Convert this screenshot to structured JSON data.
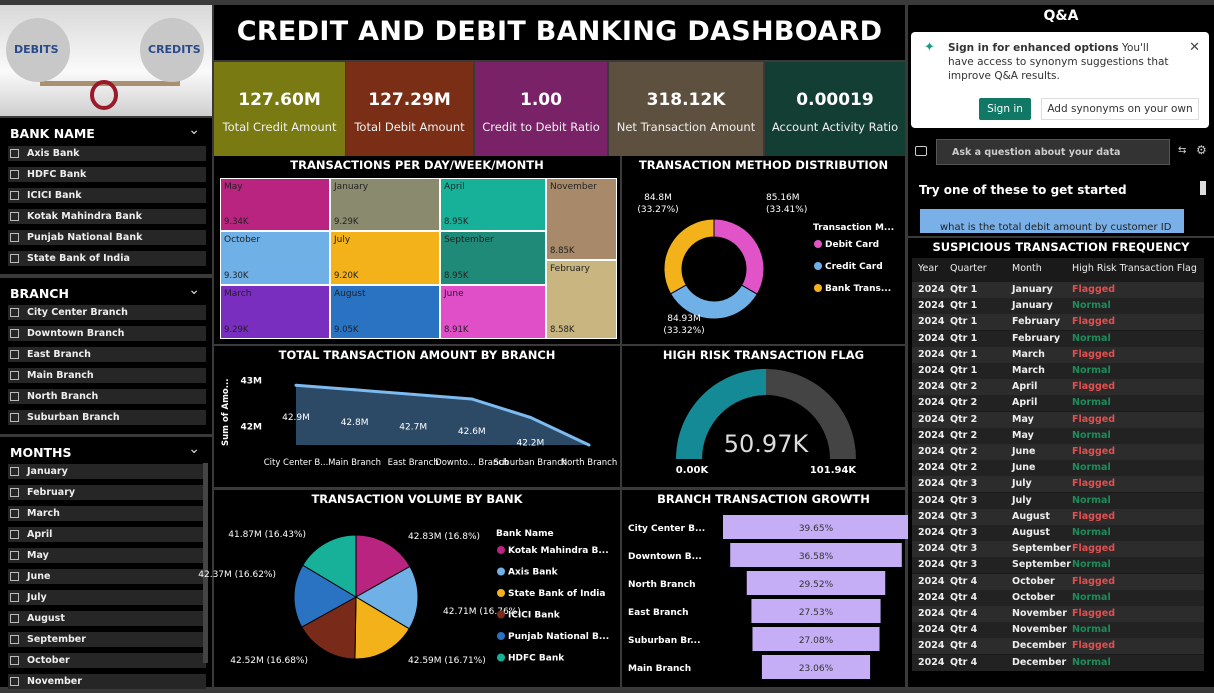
{
  "title": "CREDIT AND DEBIT BANKING DASHBOARD",
  "logo": {
    "left": "DEBITS",
    "right": "CREDITS"
  },
  "kpis": [
    {
      "value": "127.60M",
      "label": "Total Credit Amount",
      "color": "#7a7a12"
    },
    {
      "value": "127.29M",
      "label": "Total Debit Amount",
      "color": "#7a2e16"
    },
    {
      "value": "1.00",
      "label": "Credit to Debit Ratio",
      "color": "#7a2268"
    },
    {
      "value": "318.12K",
      "label": "Net Transaction Amount",
      "color": "#5e503e"
    },
    {
      "value": "0.00019",
      "label": "Account Activity Ratio",
      "color": "#123e34"
    }
  ],
  "slicers": {
    "bank": {
      "title": "BANK NAME",
      "items": [
        "Axis Bank",
        "HDFC Bank",
        "ICICI Bank",
        "Kotak Mahindra Bank",
        "Punjab National Bank",
        "State Bank of India"
      ]
    },
    "branch": {
      "title": "BRANCH",
      "items": [
        "City Center Branch",
        "Downtown Branch",
        "East Branch",
        "Main Branch",
        "North Branch",
        "Suburban Branch"
      ]
    },
    "months": {
      "title": "MONTHS",
      "items": [
        "January",
        "February",
        "March",
        "April",
        "May",
        "June",
        "July",
        "August",
        "September",
        "October",
        "November"
      ]
    }
  },
  "treemap": {
    "title": "TRANSACTIONS PER DAY/WEEK/MONTH",
    "cells": [
      {
        "name": "May",
        "value": "9.34K",
        "color": "#b8247f"
      },
      {
        "name": "January",
        "value": "9.29K",
        "color": "#8a8a6e"
      },
      {
        "name": "April",
        "value": "8.95K",
        "color": "#17b19a"
      },
      {
        "name": "November",
        "value": "8.85K",
        "color": "#a88a6a"
      },
      {
        "name": "October",
        "value": "9.30K",
        "color": "#6fb0e6"
      },
      {
        "name": "July",
        "value": "9.20K",
        "color": "#f4b21a"
      },
      {
        "name": "September",
        "value": "8.95K",
        "color": "#1f8a78"
      },
      {
        "name": "February",
        "value": "8.58K",
        "color": "#c8b580"
      },
      {
        "name": "March",
        "value": "9.29K",
        "color": "#7a2ec0"
      },
      {
        "name": "August",
        "value": "9.05K",
        "color": "#2a72c2"
      },
      {
        "name": "June",
        "value": "8.91K",
        "color": "#e04fc8"
      }
    ]
  },
  "donut": {
    "title": "TRANSACTION METHOD DISTRIBUTION",
    "legend_title": "Transaction M...",
    "slices": [
      {
        "name": "Debit Card",
        "value": 85.16,
        "label": "85.16M",
        "pct": "(33.41%)",
        "color": "#e054c8"
      },
      {
        "name": "Credit Card",
        "value": 84.93,
        "label": "84.93M",
        "pct": "(33.32%)",
        "color": "#6fb0e6"
      },
      {
        "name": "Bank Trans...",
        "value": 84.8,
        "label": "84.8M",
        "pct": "(33.27%)",
        "color": "#f4b21a"
      }
    ]
  },
  "chart_data": [
    {
      "type": "area",
      "title": "TOTAL TRANSACTION AMOUNT BY BRANCH",
      "ylabel": "Sum of Amo...",
      "categories": [
        "City Center B...",
        "Main Branch",
        "East Branch",
        "Downto... Branch",
        "Suburban Branch",
        "North Branch"
      ],
      "values": [
        42.9,
        42.8,
        42.7,
        42.6,
        42.2,
        41.6
      ],
      "data_labels": [
        "42.9M",
        "42.8M",
        "42.7M",
        "42.6M",
        "42.2M",
        ""
      ],
      "y_ticks": [
        "43M",
        "42M"
      ],
      "ylim": [
        41.6,
        43.1
      ]
    },
    {
      "type": "pie",
      "title": "TRANSACTION VOLUME BY BANK",
      "legend_title": "Bank Name",
      "slices": [
        {
          "name": "Kotak Mahindra B...",
          "value": 42.83,
          "label": "42.83M (16.8%)",
          "color": "#b8247f"
        },
        {
          "name": "Axis Bank",
          "value": 42.71,
          "label": "42.71M (16.76%)",
          "color": "#6fb0e6"
        },
        {
          "name": "State Bank of India",
          "value": 42.59,
          "label": "42.59M (16.71%)",
          "color": "#f4b21a"
        },
        {
          "name": "ICICI Bank",
          "value": 42.52,
          "label": "42.52M (16.68%)",
          "color": "#7a2a18"
        },
        {
          "name": "Punjab National B...",
          "value": 42.37,
          "label": "42.37M (16.62%)",
          "color": "#2a72c2"
        },
        {
          "name": "HDFC Bank",
          "value": 41.87,
          "label": "41.87M (16.43%)",
          "color": "#17b19a"
        }
      ]
    },
    {
      "type": "bar",
      "title": "BRANCH TRANSACTION GROWTH",
      "categories": [
        "City Center B...",
        "Downtown B...",
        "North Branch",
        "East Branch",
        "Suburban Br...",
        "Main Branch"
      ],
      "values": [
        39.65,
        36.58,
        29.52,
        27.53,
        27.08,
        23.06
      ],
      "labels": [
        "39.65%",
        "36.58%",
        "29.52%",
        "27.53%",
        "27.08%",
        "23.06%"
      ]
    }
  ],
  "gauge": {
    "title": "HIGH RISK TRANSACTION FLAG",
    "value": 50.97,
    "value_label": "50.97K",
    "min": "0.00K",
    "max": "101.94K",
    "max_value": 101.94
  },
  "qa": {
    "title": "Q&A",
    "sign_in_bold": "Sign in for enhanced options",
    "sign_in_text": "You'll have access to synonym suggestions that improve Q&A results.",
    "sign_in_btn": "Sign in",
    "synonyms_btn": "Add synonyms on your own",
    "placeholder": "Ask a question about your data",
    "try_text": "Try one of these to get started",
    "suggestion": "what is the total debit amount by customer ID"
  },
  "table": {
    "title": "SUSPICIOUS TRANSACTION FREQUENCY",
    "headers": [
      "Year",
      "Quarter",
      "Month",
      "High Risk Transaction Flag"
    ],
    "rows": [
      [
        "2024",
        "Qtr 1",
        "January",
        "Flagged"
      ],
      [
        "2024",
        "Qtr 1",
        "January",
        "Normal"
      ],
      [
        "2024",
        "Qtr 1",
        "February",
        "Flagged"
      ],
      [
        "2024",
        "Qtr 1",
        "February",
        "Normal"
      ],
      [
        "2024",
        "Qtr 1",
        "March",
        "Flagged"
      ],
      [
        "2024",
        "Qtr 1",
        "March",
        "Normal"
      ],
      [
        "2024",
        "Qtr 2",
        "April",
        "Flagged"
      ],
      [
        "2024",
        "Qtr 2",
        "April",
        "Normal"
      ],
      [
        "2024",
        "Qtr 2",
        "May",
        "Flagged"
      ],
      [
        "2024",
        "Qtr 2",
        "May",
        "Normal"
      ],
      [
        "2024",
        "Qtr 2",
        "June",
        "Flagged"
      ],
      [
        "2024",
        "Qtr 2",
        "June",
        "Normal"
      ],
      [
        "2024",
        "Qtr 3",
        "July",
        "Flagged"
      ],
      [
        "2024",
        "Qtr 3",
        "July",
        "Normal"
      ],
      [
        "2024",
        "Qtr 3",
        "August",
        "Flagged"
      ],
      [
        "2024",
        "Qtr 3",
        "August",
        "Normal"
      ],
      [
        "2024",
        "Qtr 3",
        "September",
        "Flagged"
      ],
      [
        "2024",
        "Qtr 3",
        "September",
        "Normal"
      ],
      [
        "2024",
        "Qtr 4",
        "October",
        "Flagged"
      ],
      [
        "2024",
        "Qtr 4",
        "October",
        "Normal"
      ],
      [
        "2024",
        "Qtr 4",
        "November",
        "Flagged"
      ],
      [
        "2024",
        "Qtr 4",
        "November",
        "Normal"
      ],
      [
        "2024",
        "Qtr 4",
        "December",
        "Flagged"
      ],
      [
        "2024",
        "Qtr 4",
        "December",
        "Normal"
      ]
    ]
  }
}
